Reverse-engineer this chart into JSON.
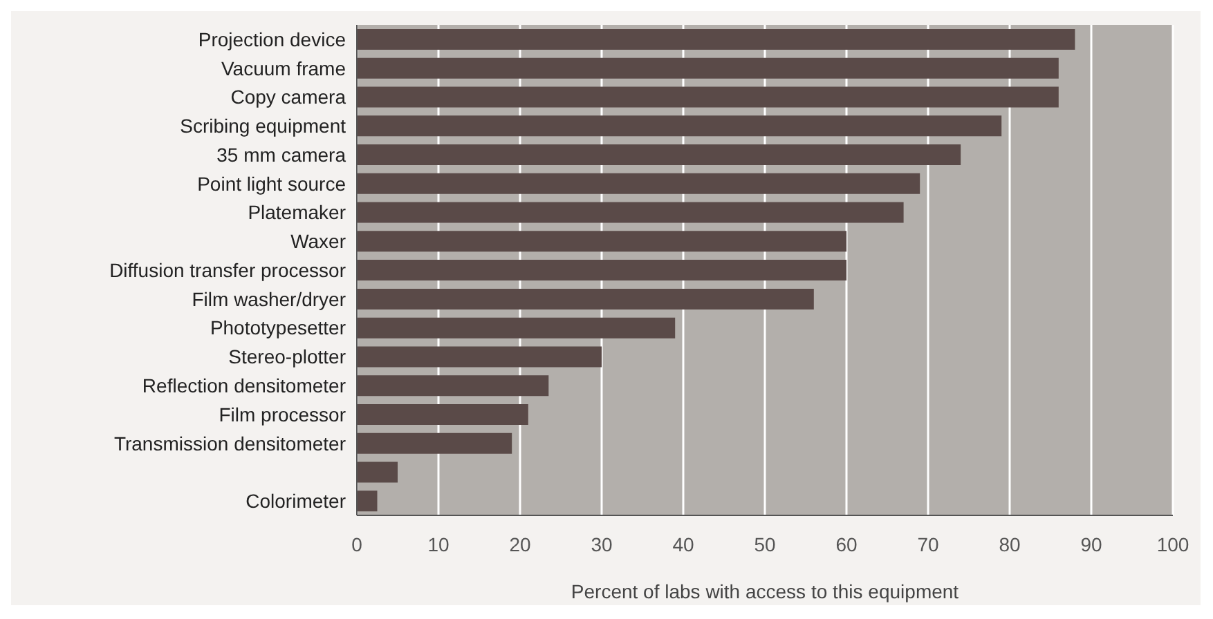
{
  "chart_data": {
    "type": "bar",
    "orientation": "horizontal",
    "xlabel": "Percent of labs with access to this equipment",
    "categories": [
      "Projection device",
      "Vacuum frame",
      "Copy camera",
      "Scribing equipment",
      "35 mm camera",
      "Point light source",
      "Platemaker",
      "Waxer",
      "Diffusion transfer processor",
      "Film washer/dryer",
      "Phototypesetter",
      "Stereo-plotter",
      "Reflection densitometer",
      "Film processor",
      "Transmission densitometer",
      null,
      "Colorimeter"
    ],
    "values": [
      88,
      86,
      86,
      79,
      74,
      69,
      67,
      60,
      60,
      56,
      39,
      30,
      23.5,
      21,
      19,
      5,
      2.5
    ],
    "color": "#5a4a48",
    "xlim": [
      0,
      100
    ],
    "xticks": [
      0,
      10,
      20,
      30,
      40,
      50,
      60,
      70,
      80,
      90,
      100
    ],
    "grid": "x",
    "legend": false
  }
}
